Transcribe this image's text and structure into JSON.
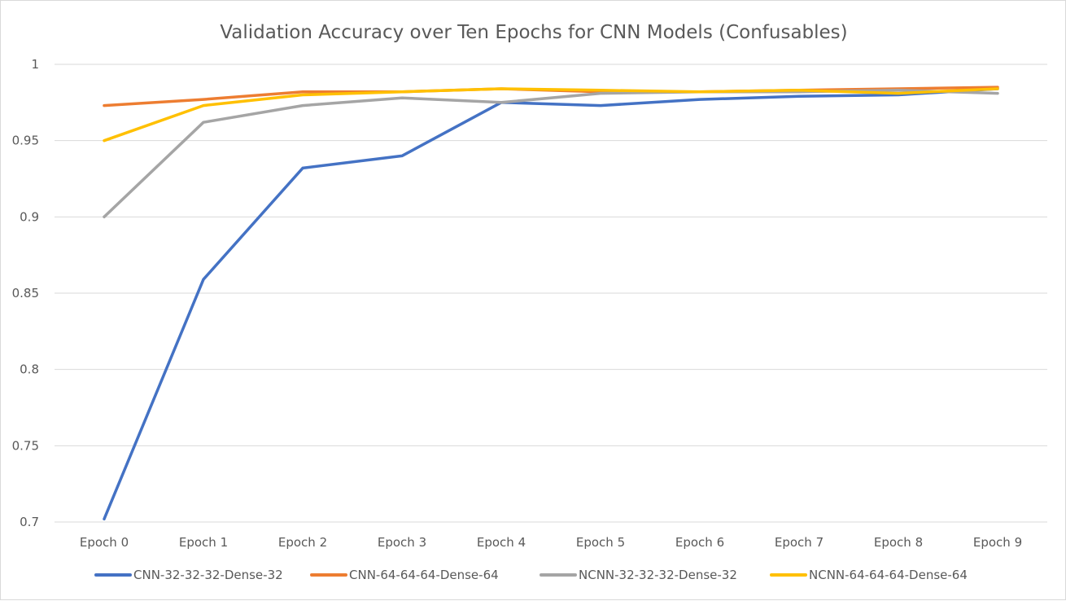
{
  "chart_data": {
    "type": "line",
    "title": "Validation Accuracy over Ten Epochs for CNN Models (Confusables)",
    "xlabel": "",
    "ylabel": "",
    "categories": [
      "Epoch 0",
      "Epoch 1",
      "Epoch 2",
      "Epoch 3",
      "Epoch 4",
      "Epoch 5",
      "Epoch 6",
      "Epoch 7",
      "Epoch 8",
      "Epoch 9"
    ],
    "ylim": [
      0.7,
      1.0
    ],
    "yticks": [
      0.7,
      0.75,
      0.8,
      0.85,
      0.9,
      0.95,
      1.0
    ],
    "ytick_labels": [
      "0.7",
      "0.75",
      "0.8",
      "0.85",
      "0.9",
      "0.95",
      "1"
    ],
    "grid": true,
    "legend_position": "bottom",
    "series": [
      {
        "name": "CNN-32-32-32-Dense-32",
        "color": "#4472C4",
        "values": [
          0.702,
          0.859,
          0.932,
          0.94,
          0.975,
          0.973,
          0.977,
          0.979,
          0.98,
          0.984
        ]
      },
      {
        "name": "CNN-64-64-64-Dense-64",
        "color": "#ED7D31",
        "values": [
          0.973,
          0.977,
          0.982,
          0.982,
          0.984,
          0.982,
          0.982,
          0.983,
          0.984,
          0.985
        ]
      },
      {
        "name": "NCNN-32-32-32-Dense-32",
        "color": "#A5A5A5",
        "values": [
          0.9,
          0.962,
          0.973,
          0.978,
          0.975,
          0.981,
          0.982,
          0.982,
          0.983,
          0.981
        ]
      },
      {
        "name": "NCNN-64-64-64-Dense-64",
        "color": "#FFC000",
        "values": [
          0.95,
          0.973,
          0.98,
          0.982,
          0.984,
          0.983,
          0.982,
          0.983,
          0.981,
          0.984
        ]
      }
    ]
  }
}
